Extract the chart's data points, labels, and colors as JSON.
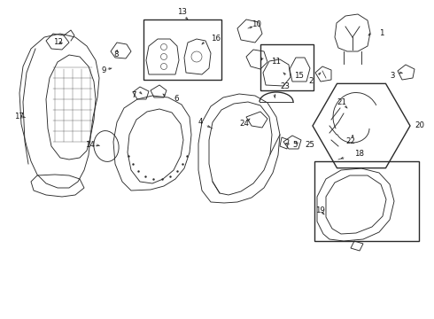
{
  "bg_color": "#ffffff",
  "line_color": "#2a2a2a",
  "lw": 0.65,
  "fig_w": 4.9,
  "fig_h": 3.6,
  "dpi": 100
}
